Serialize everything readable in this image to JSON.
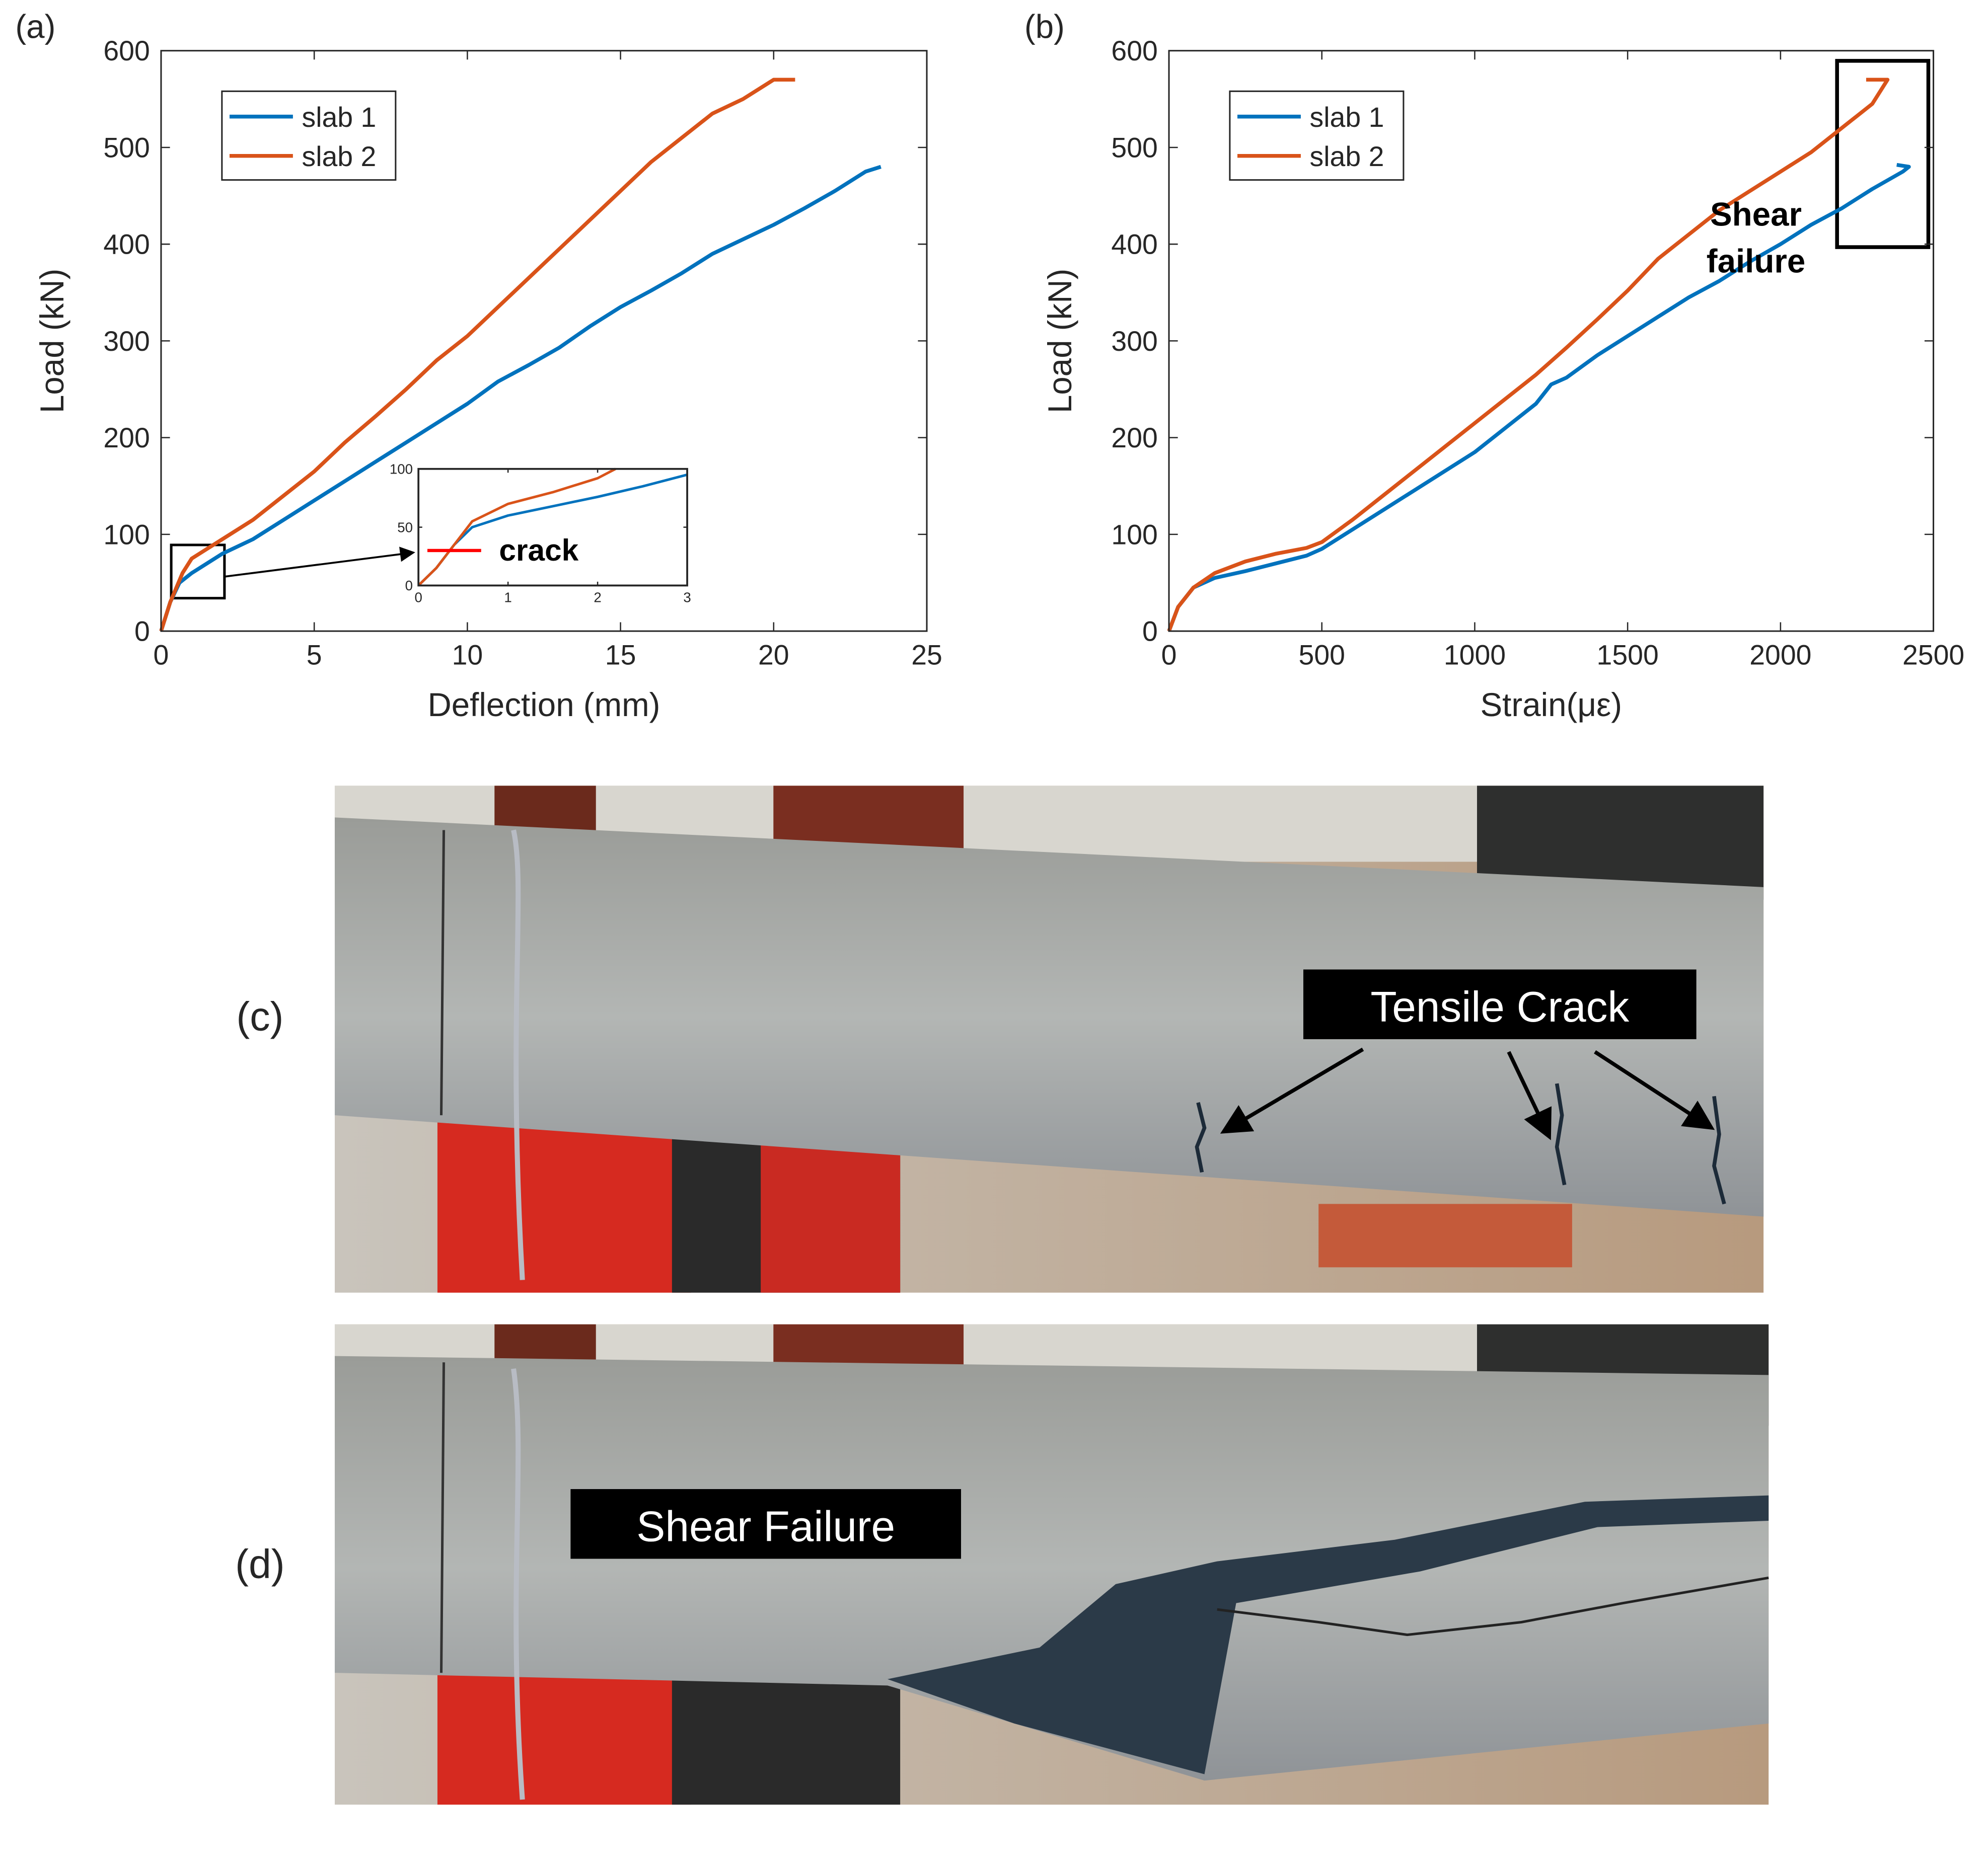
{
  "chart_data": [
    {
      "type": "line",
      "label": "(a)",
      "xlabel": "Deflection (mm)",
      "ylabel": "Load (kN)",
      "xlim": [
        0,
        25
      ],
      "ylim": [
        0,
        600
      ],
      "xticks": [
        0,
        5,
        10,
        15,
        20,
        25
      ],
      "yticks": [
        0,
        100,
        200,
        300,
        400,
        500,
        600
      ],
      "series": [
        {
          "name": "slab 1",
          "color": "#0072bd",
          "x": [
            0,
            0.3,
            0.6,
            1,
            1.5,
            2,
            3,
            4,
            5,
            6,
            7,
            8,
            9,
            10,
            11,
            12,
            13,
            14,
            15,
            16,
            17,
            18,
            19,
            20,
            21,
            22,
            23,
            23.5
          ],
          "values": [
            0,
            30,
            50,
            60,
            70,
            80,
            95,
            115,
            135,
            155,
            175,
            195,
            215,
            235,
            258,
            275,
            293,
            315,
            335,
            352,
            370,
            390,
            405,
            420,
            437,
            455,
            475,
            480
          ]
        },
        {
          "name": "slab 2",
          "color": "#d95319",
          "x": [
            0,
            0.3,
            0.7,
            1,
            1.5,
            2,
            3,
            4,
            5,
            6,
            7,
            8,
            9,
            10,
            11,
            12,
            13,
            14,
            15,
            16,
            17,
            18,
            19,
            20,
            20.7
          ],
          "values": [
            0,
            30,
            60,
            75,
            85,
            95,
            115,
            140,
            165,
            195,
            222,
            250,
            280,
            305,
            335,
            365,
            395,
            425,
            455,
            485,
            510,
            535,
            550,
            570,
            570
          ]
        }
      ]
    },
    {
      "type": "line",
      "xlim": [
        0,
        3
      ],
      "ylim": [
        0,
        100
      ],
      "xticks": [
        0,
        1,
        2,
        3
      ],
      "yticks": [
        0,
        50,
        100
      ],
      "series": [
        {
          "color": "#0072bd",
          "x": [
            0,
            0.2,
            0.4,
            0.6,
            1,
            1.5,
            2,
            2.5,
            3
          ],
          "values": [
            0,
            15,
            35,
            50,
            60,
            68,
            76,
            85,
            95
          ]
        },
        {
          "color": "#d95319",
          "x": [
            0,
            0.2,
            0.4,
            0.6,
            1,
            1.5,
            2,
            2.2
          ],
          "values": [
            0,
            15,
            35,
            55,
            70,
            80,
            92,
            100
          ]
        }
      ],
      "annotations": [
        {
          "text": "crack",
          "y": 30
        }
      ]
    },
    {
      "type": "line",
      "label": "(b)",
      "xlabel": "Strain(με)",
      "ylabel": "Load (kN)",
      "xlim": [
        0,
        2500
      ],
      "ylim": [
        0,
        600
      ],
      "xticks": [
        0,
        500,
        1000,
        1500,
        2000,
        2500
      ],
      "yticks": [
        0,
        100,
        200,
        300,
        400,
        500,
        600
      ],
      "series": [
        {
          "name": "slab 1",
          "color": "#0072bd",
          "x": [
            0,
            30,
            80,
            150,
            250,
            350,
            450,
            500,
            600,
            700,
            800,
            900,
            1000,
            1100,
            1200,
            1250,
            1300,
            1400,
            1500,
            1600,
            1700,
            1800,
            1900,
            2000,
            2100,
            2200,
            2300,
            2400,
            2420,
            2380
          ],
          "values": [
            0,
            25,
            45,
            55,
            62,
            70,
            78,
            85,
            105,
            125,
            145,
            165,
            185,
            210,
            235,
            255,
            262,
            285,
            305,
            325,
            345,
            362,
            382,
            400,
            420,
            437,
            457,
            475,
            480,
            482
          ]
        },
        {
          "name": "slab 2",
          "color": "#d95319",
          "x": [
            0,
            30,
            80,
            150,
            250,
            350,
            450,
            500,
            600,
            700,
            800,
            900,
            1000,
            1100,
            1200,
            1300,
            1400,
            1500,
            1600,
            1700,
            1800,
            1900,
            2000,
            2100,
            2200,
            2300,
            2350,
            2280
          ],
          "values": [
            0,
            25,
            45,
            60,
            72,
            80,
            86,
            92,
            115,
            140,
            165,
            190,
            215,
            240,
            265,
            293,
            322,
            352,
            385,
            410,
            435,
            455,
            475,
            495,
            520,
            545,
            570,
            570
          ]
        }
      ],
      "annotations": [
        {
          "text": [
            "Shear",
            "failure"
          ]
        }
      ]
    }
  ],
  "panels": [
    {
      "label": "(c)",
      "annotation": "Tensile Crack"
    },
    {
      "label": "(d)",
      "annotation": "Shear Failure"
    }
  ]
}
